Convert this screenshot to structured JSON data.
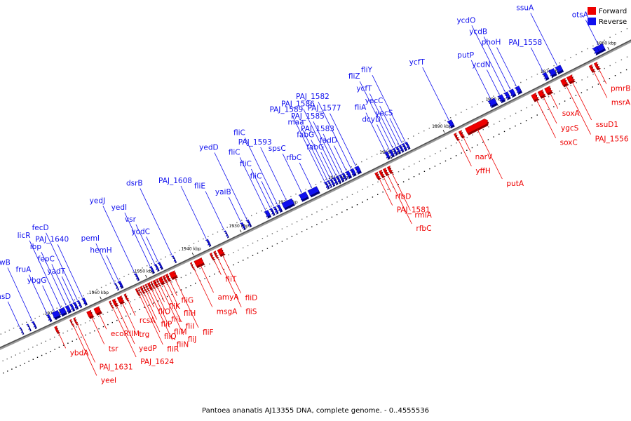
{
  "caption": "Pantoea ananatis AJ13355 DNA, complete genome. - 0..4555536",
  "legend": {
    "forward": {
      "label": "Forward",
      "color": "#ee0000"
    },
    "reverse": {
      "label": "Reverse",
      "color": "#1010ee"
    }
  },
  "ticks": [
    {
      "pos": 1860,
      "label": "1860 kbp"
    },
    {
      "pos": 1870,
      "label": "1870 kbp"
    },
    {
      "pos": 1880,
      "label": "1880 kbp"
    },
    {
      "pos": 1890,
      "label": "1890 kbp"
    },
    {
      "pos": 1900,
      "label": "1900 kbp"
    },
    {
      "pos": 1910,
      "label": "1910 kbp"
    },
    {
      "pos": 1920,
      "label": "1920 kbp"
    },
    {
      "pos": 1930,
      "label": "1930 kbp"
    },
    {
      "pos": 1940,
      "label": "1940 kbp"
    },
    {
      "pos": 1950,
      "label": "1950 kbp"
    },
    {
      "pos": 1960,
      "label": "1960 kbp"
    },
    {
      "pos": 1970,
      "label": "1970 kbp"
    }
  ],
  "reverse_genes": [
    {
      "name": "otsA",
      "pos": 1860.5,
      "len": 1.3
    },
    {
      "name": "otsB",
      "pos": 1861.5,
      "len": 0.8
    },
    {
      "name": "ssuA",
      "pos": 1868.0,
      "len": 1.0
    },
    {
      "name": "flbD",
      "pos": 1869.2,
      "len": 1.0
    },
    {
      "name": "PAJ_1558",
      "pos": 1870.6,
      "len": 0.7
    },
    {
      "name": "phoH",
      "pos": 1875.5,
      "len": 0.8
    },
    {
      "name": "ycdB",
      "pos": 1876.6,
      "len": 0.8
    },
    {
      "name": "ycdO",
      "pos": 1877.6,
      "len": 0.7
    },
    {
      "name": "ycdN",
      "pos": 1878.6,
      "len": 0.8
    },
    {
      "name": "putP",
      "pos": 1880.0,
      "len": 1.2
    },
    {
      "name": "ycfT",
      "pos": 1888.0,
      "len": 0.8
    },
    {
      "name": "fliY",
      "pos": 1896.4,
      "len": 0.5
    },
    {
      "name": "yecS",
      "pos": 1897.0,
      "len": 0.5
    },
    {
      "name": "yecC",
      "pos": 1897.6,
      "len": 0.5
    },
    {
      "name": "ycfT",
      "pos": 1898.2,
      "len": 0.5
    },
    {
      "name": "fliZ",
      "pos": 1898.8,
      "len": 0.5
    },
    {
      "name": "dcyD",
      "pos": 1899.4,
      "len": 0.6
    },
    {
      "name": "fliA",
      "pos": 1900.2,
      "len": 0.6
    },
    {
      "name": "PAJ_1577",
      "pos": 1905.8,
      "len": 0.8
    },
    {
      "name": "PAJ_1582",
      "pos": 1906.8,
      "len": 0.7
    },
    {
      "name": "fadD",
      "pos": 1907.7,
      "len": 0.7
    },
    {
      "name": "PAJ_1583",
      "pos": 1908.6,
      "len": 0.5
    },
    {
      "name": "PAJ_1585",
      "pos": 1909.2,
      "len": 0.5
    },
    {
      "name": "PAJ_1586",
      "pos": 1909.8,
      "len": 0.5
    },
    {
      "name": "fabG",
      "pos": 1910.4,
      "len": 0.5
    },
    {
      "name": "fabG",
      "pos": 1911.0,
      "len": 0.5
    },
    {
      "name": "maa",
      "pos": 1911.6,
      "len": 0.4
    },
    {
      "name": "PAJ_1589",
      "pos": 1912.1,
      "len": 0.5
    },
    {
      "name": "rfbC",
      "pos": 1914.0,
      "len": 1.8
    },
    {
      "name": "spsC",
      "pos": 1916.2,
      "len": 1.4
    },
    {
      "name": "PAJ_1593",
      "pos": 1919.0,
      "len": 2.0
    },
    {
      "name": "fliC",
      "pos": 1921.5,
      "len": 0.6
    },
    {
      "name": "fliC",
      "pos": 1922.3,
      "len": 0.5
    },
    {
      "name": "fliC",
      "pos": 1923.0,
      "len": 0.5
    },
    {
      "name": "fliC",
      "pos": 1923.8,
      "len": 0.8
    },
    {
      "name": "yedD",
      "pos": 1927.8,
      "len": 0.5
    },
    {
      "name": "yaiB",
      "pos": 1929.0,
      "len": 0.5
    },
    {
      "name": "fliE",
      "pos": 1932.5,
      "len": 0.4
    },
    {
      "name": "PAJ_1608",
      "pos": 1936.2,
      "len": 0.5
    },
    {
      "name": "dsrB",
      "pos": 1943.5,
      "len": 0.4
    },
    {
      "name": "yodC",
      "pos": 1946.4,
      "len": 0.5
    },
    {
      "name": "vsr",
      "pos": 1947.2,
      "len": 0.5
    },
    {
      "name": "yedI",
      "pos": 1948.2,
      "len": 0.5
    },
    {
      "name": "yedJ",
      "pos": 1951.5,
      "len": 0.5
    },
    {
      "name": "hemH",
      "pos": 1955.0,
      "len": 0.6
    },
    {
      "name": "pemI",
      "pos": 1956.0,
      "len": 0.4
    },
    {
      "name": "PAJ_1640",
      "pos": 1963.0,
      "len": 0.6
    },
    {
      "name": "fecD",
      "pos": 1964.2,
      "len": 0.5
    },
    {
      "name": "yadT",
      "pos": 1965.0,
      "len": 0.6
    },
    {
      "name": "fepC",
      "pos": 1965.8,
      "len": 0.6
    },
    {
      "name": "ibp",
      "pos": 1966.6,
      "len": 0.8
    },
    {
      "name": "licR",
      "pos": 1967.6,
      "len": 1.2
    },
    {
      "name": "ybgG",
      "pos": 1969.0,
      "len": 1.4
    },
    {
      "name": "fruA",
      "pos": 1971.0,
      "len": 0.6
    },
    {
      "name": "frwB",
      "pos": 1974.5,
      "len": 0.5
    },
    {
      "name": "fryA",
      "pos": 1975.8,
      "len": 0.4
    },
    {
      "name": "rhsD",
      "pos": 1977.5,
      "len": 0.4
    }
  ],
  "forward_genes": [
    {
      "name": "pmrB",
      "pos": 1862.5,
      "len": 0.6
    },
    {
      "name": "msrA",
      "pos": 1863.4,
      "len": 0.6
    },
    {
      "name": "ssuD1",
      "pos": 1867.0,
      "len": 1.0
    },
    {
      "name": "PAJ_1556",
      "pos": 1868.2,
      "len": 0.9
    },
    {
      "name": "soxA",
      "pos": 1871.0,
      "len": 1.0
    },
    {
      "name": "ygcS",
      "pos": 1872.3,
      "len": 0.9
    },
    {
      "name": "soxC",
      "pos": 1873.5,
      "len": 0.9
    },
    {
      "name": "putA",
      "pos": 1883.0,
      "len": 3.6
    },
    {
      "name": "narV",
      "pos": 1887.2,
      "len": 0.6
    },
    {
      "name": "yffH",
      "pos": 1888.2,
      "len": 0.5
    },
    {
      "name": "rmlA",
      "pos": 1900.8,
      "len": 0.6
    },
    {
      "name": "rfbC",
      "pos": 1901.6,
      "len": 0.6
    },
    {
      "name": "rfbD",
      "pos": 1902.4,
      "len": 0.6
    },
    {
      "name": "PAJ_1581",
      "pos": 1903.2,
      "len": 0.6
    },
    {
      "name": "fliD",
      "pos": 1934.5,
      "len": 1.0
    },
    {
      "name": "fliS",
      "pos": 1935.8,
      "len": 0.5
    },
    {
      "name": "fliT",
      "pos": 1936.6,
      "len": 0.5
    },
    {
      "name": "amyA",
      "pos": 1938.8,
      "len": 1.6
    },
    {
      "name": "msgA",
      "pos": 1940.8,
      "len": 0.4
    },
    {
      "name": "fliF",
      "pos": 1944.5,
      "len": 1.2
    },
    {
      "name": "fliG",
      "pos": 1945.9,
      "len": 0.6
    },
    {
      "name": "fliH",
      "pos": 1946.6,
      "len": 0.5
    },
    {
      "name": "fliI",
      "pos": 1947.2,
      "len": 0.8
    },
    {
      "name": "fliJ",
      "pos": 1948.1,
      "len": 0.4
    },
    {
      "name": "fliK",
      "pos": 1948.6,
      "len": 0.6
    },
    {
      "name": "fliL",
      "pos": 1949.3,
      "len": 0.4
    },
    {
      "name": "fliM",
      "pos": 1949.8,
      "len": 0.6
    },
    {
      "name": "fliN",
      "pos": 1950.5,
      "len": 0.4
    },
    {
      "name": "fliO",
      "pos": 1951.0,
      "len": 0.4
    },
    {
      "name": "fliP",
      "pos": 1951.5,
      "len": 0.5
    },
    {
      "name": "fliQ",
      "pos": 1952.1,
      "len": 0.3
    },
    {
      "name": "fliR",
      "pos": 1952.5,
      "len": 0.5
    },
    {
      "name": "rcsA",
      "pos": 1955.0,
      "len": 0.5
    },
    {
      "name": "trg",
      "pos": 1956.0,
      "len": 1.0
    },
    {
      "name": "yedP",
      "pos": 1957.4,
      "len": 0.7
    },
    {
      "name": "PAJ_1624",
      "pos": 1958.4,
      "len": 0.4
    },
    {
      "name": "ecoRIIM",
      "pos": 1961.0,
      "len": 1.2
    },
    {
      "name": "tsr",
      "pos": 1962.8,
      "len": 1.0
    },
    {
      "name": "PAJ_1631",
      "pos": 1966.3,
      "len": 0.5
    },
    {
      "name": "yeeI",
      "pos": 1967.2,
      "len": 0.4
    },
    {
      "name": "ybdA",
      "pos": 1970.5,
      "len": 0.6
    }
  ]
}
